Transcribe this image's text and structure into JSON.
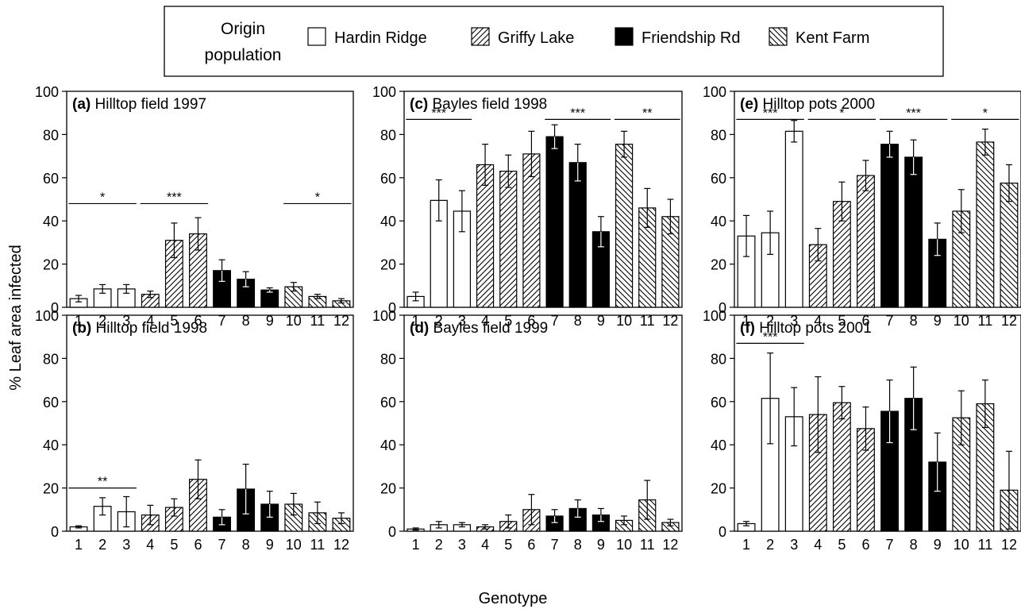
{
  "legend": {
    "title_line1": "Origin",
    "title_line2": "population",
    "entries": [
      {
        "label": "Hardin Ridge",
        "fill": "white"
      },
      {
        "label": "Griffy Lake",
        "fill": "hatch-forward"
      },
      {
        "label": "Friendship Rd",
        "fill": "black"
      },
      {
        "label": "Kent Farm",
        "fill": "hatch-back"
      }
    ]
  },
  "ylabel": "% Leaf area infected",
  "xlabel": "Genotype",
  "chart_data": [
    {
      "type": "bar",
      "title": "(a) Hilltop field 1997",
      "categories": [
        "1",
        "2",
        "3",
        "4",
        "5",
        "6",
        "7",
        "8",
        "9",
        "10",
        "11",
        "12"
      ],
      "fills": [
        "white",
        "white",
        "white",
        "hatch-forward",
        "hatch-forward",
        "hatch-forward",
        "black",
        "black",
        "black",
        "hatch-back",
        "hatch-back",
        "hatch-back"
      ],
      "values": [
        4,
        8.5,
        8.5,
        6,
        31,
        34,
        17,
        13,
        8,
        9.5,
        5,
        3
      ],
      "errors": [
        1.5,
        2,
        2,
        1.5,
        8,
        7.5,
        5,
        3.5,
        1,
        2,
        1,
        1
      ],
      "ylim": [
        0,
        100
      ],
      "yticks": [
        0,
        20,
        40,
        60,
        80,
        100
      ],
      "significance": [
        {
          "from": 1,
          "to": 3,
          "label": "*",
          "y": 48
        },
        {
          "from": 4,
          "to": 6,
          "label": "***",
          "y": 48
        },
        {
          "from": 10,
          "to": 12,
          "label": "*",
          "y": 48
        }
      ]
    },
    {
      "type": "bar",
      "title": "(b) Hilltop field 1998",
      "categories": [
        "1",
        "2",
        "3",
        "4",
        "5",
        "6",
        "7",
        "8",
        "9",
        "10",
        "11",
        "12"
      ],
      "fills": [
        "white",
        "white",
        "white",
        "hatch-forward",
        "hatch-forward",
        "hatch-forward",
        "black",
        "black",
        "black",
        "hatch-back",
        "hatch-back",
        "hatch-back"
      ],
      "values": [
        2,
        11.5,
        9,
        7.5,
        11,
        24,
        6.5,
        19.5,
        12.5,
        12.5,
        8.5,
        6
      ],
      "errors": [
        0.5,
        4,
        7,
        4.5,
        4,
        9,
        3.5,
        11.5,
        6,
        5,
        5,
        2.5
      ],
      "ylim": [
        0,
        100
      ],
      "yticks": [
        0,
        20,
        40,
        60,
        80,
        100
      ],
      "significance": [
        {
          "from": 1,
          "to": 3,
          "label": "**",
          "y": 20
        }
      ]
    },
    {
      "type": "bar",
      "title": "(c) Bayles field 1998",
      "categories": [
        "1",
        "2",
        "3",
        "4",
        "5",
        "6",
        "7",
        "8",
        "9",
        "10",
        "11",
        "12"
      ],
      "fills": [
        "white",
        "white",
        "white",
        "hatch-forward",
        "hatch-forward",
        "hatch-forward",
        "black",
        "black",
        "black",
        "hatch-back",
        "hatch-back",
        "hatch-back"
      ],
      "values": [
        5,
        49.5,
        44.5,
        66,
        63,
        71,
        79,
        67,
        35,
        75.5,
        46,
        42
      ],
      "errors": [
        2,
        9.5,
        9.5,
        9.5,
        7.5,
        10.5,
        5.5,
        8.5,
        7,
        6,
        9,
        8
      ],
      "ylim": [
        0,
        100
      ],
      "yticks": [
        0,
        20,
        40,
        60,
        80,
        100
      ],
      "significance": [
        {
          "from": 1,
          "to": 3,
          "label": "***",
          "y": 87
        },
        {
          "from": 7,
          "to": 9,
          "label": "***",
          "y": 87
        },
        {
          "from": 10,
          "to": 12,
          "label": "**",
          "y": 87
        }
      ]
    },
    {
      "type": "bar",
      "title": "(d) Bayles field 1999",
      "categories": [
        "1",
        "2",
        "3",
        "4",
        "5",
        "6",
        "7",
        "8",
        "9",
        "10",
        "11",
        "12"
      ],
      "fills": [
        "white",
        "white",
        "white",
        "hatch-forward",
        "hatch-forward",
        "hatch-forward",
        "black",
        "black",
        "black",
        "hatch-back",
        "hatch-back",
        "hatch-back"
      ],
      "values": [
        1,
        3,
        3,
        2,
        4.5,
        10,
        7,
        10.5,
        7.5,
        5,
        14.5,
        4
      ],
      "errors": [
        0.5,
        1.5,
        1,
        1,
        3,
        7,
        3,
        4,
        3,
        2,
        9,
        1.5
      ],
      "ylim": [
        0,
        100
      ],
      "yticks": [
        0,
        20,
        40,
        60,
        80,
        100
      ],
      "significance": []
    },
    {
      "type": "bar",
      "title": "(e) Hilltop pots 2000",
      "categories": [
        "1",
        "2",
        "3",
        "4",
        "5",
        "6",
        "7",
        "8",
        "9",
        "10",
        "11",
        "12"
      ],
      "fills": [
        "white",
        "white",
        "white",
        "hatch-forward",
        "hatch-forward",
        "hatch-forward",
        "black",
        "black",
        "black",
        "hatch-back",
        "hatch-back",
        "hatch-back"
      ],
      "values": [
        33,
        34.5,
        81.5,
        29,
        49,
        61,
        75.5,
        69.5,
        31.5,
        44.5,
        76.5,
        57.5
      ],
      "errors": [
        9.5,
        10,
        5,
        7.5,
        9,
        7,
        6,
        8,
        7.5,
        10,
        6,
        8.5
      ],
      "ylim": [
        0,
        100
      ],
      "yticks": [
        0,
        20,
        40,
        60,
        80,
        100
      ],
      "significance": [
        {
          "from": 1,
          "to": 3,
          "label": "***",
          "y": 87
        },
        {
          "from": 4,
          "to": 6,
          "label": "*",
          "y": 87
        },
        {
          "from": 7,
          "to": 9,
          "label": "***",
          "y": 87
        },
        {
          "from": 10,
          "to": 12,
          "label": "*",
          "y": 87
        }
      ]
    },
    {
      "type": "bar",
      "title": "(f) Hilltop pots 2001",
      "categories": [
        "1",
        "2",
        "3",
        "4",
        "5",
        "6",
        "7",
        "8",
        "9",
        "10",
        "11",
        "12"
      ],
      "fills": [
        "white",
        "white",
        "white",
        "hatch-forward",
        "hatch-forward",
        "hatch-forward",
        "black",
        "black",
        "black",
        "hatch-back",
        "hatch-back",
        "hatch-back"
      ],
      "values": [
        3.5,
        61.5,
        53,
        54,
        59.5,
        47.5,
        55.5,
        61.5,
        32,
        52.5,
        59,
        19
      ],
      "errors": [
        1,
        21,
        13.5,
        17.5,
        7.5,
        10,
        14.5,
        14.5,
        13.5,
        12.5,
        11,
        18
      ],
      "ylim": [
        0,
        100
      ],
      "yticks": [
        0,
        20,
        40,
        60,
        80,
        100
      ],
      "significance": [
        {
          "from": 1,
          "to": 3,
          "label": "***",
          "y": 87
        }
      ]
    }
  ]
}
